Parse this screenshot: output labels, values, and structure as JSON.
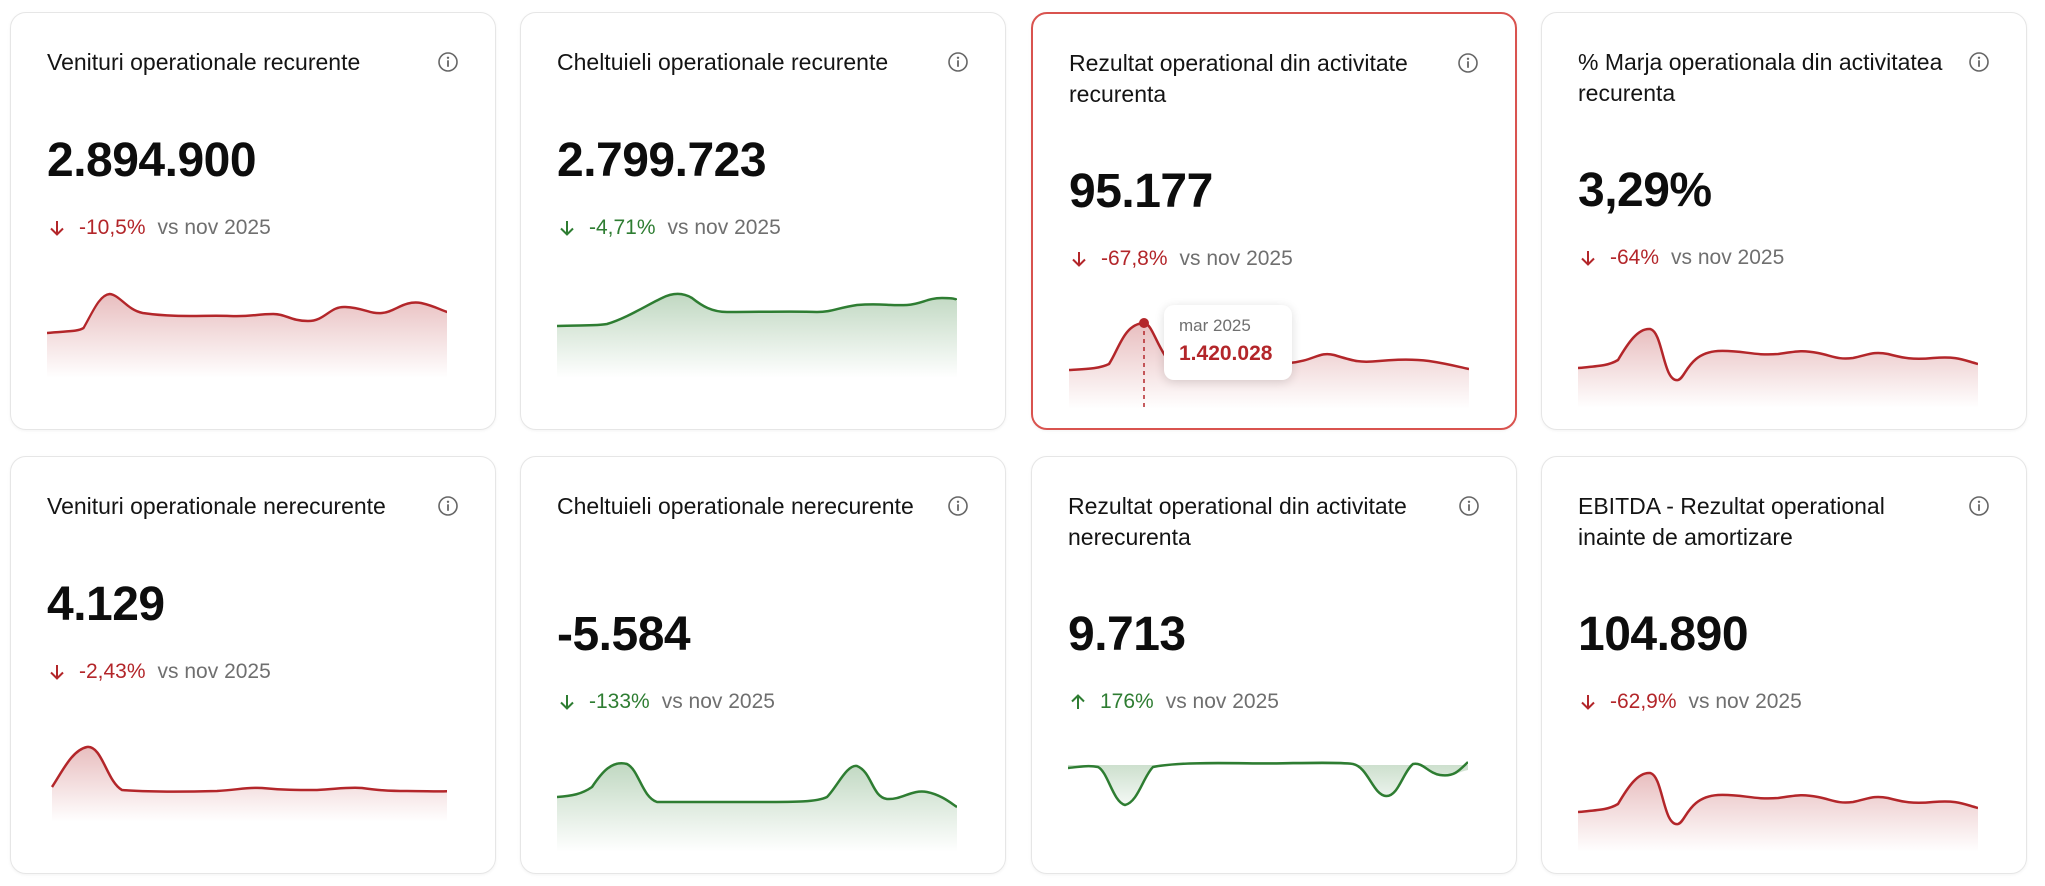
{
  "comparison_label": "vs nov 2025",
  "colors": {
    "negative": "#b3262a",
    "positive": "#2e7d32",
    "active_border": "#d9534f"
  },
  "cards": [
    {
      "title": "Venituri operationale recurente",
      "value": "2.894.900",
      "change": "-10,5%",
      "direction": "down",
      "tone": "negative",
      "icon": "info-icon"
    },
    {
      "title": "Cheltuieli operationale recurente",
      "value": "2.799.723",
      "change": "-4,71%",
      "direction": "down",
      "tone": "positive",
      "icon": "info-icon"
    },
    {
      "title": "Rezultat operational din activitate recurenta",
      "value": "95.177",
      "change": "-67,8%",
      "direction": "down",
      "tone": "negative",
      "icon": "info-icon",
      "active": true
    },
    {
      "title": "% Marja operationala din activitatea recurenta",
      "value": "3,29%",
      "change": "-64%",
      "direction": "down",
      "tone": "negative",
      "icon": "info-icon"
    },
    {
      "title": "Venituri operationale nerecurente",
      "value": "4.129",
      "change": "-2,43%",
      "direction": "down",
      "tone": "negative",
      "icon": "info-icon"
    },
    {
      "title": "Cheltuieli operationale nerecurente",
      "value": "-5.584",
      "change": "-133%",
      "direction": "down",
      "tone": "positive",
      "icon": "info-icon"
    },
    {
      "title": "Rezultat operational din activitate nerecurenta",
      "value": "9.713",
      "change": "176%",
      "direction": "up",
      "tone": "positive",
      "icon": "info-icon"
    },
    {
      "title": "EBITDA - Rezultat operational inainte de amortizare",
      "value": "104.890",
      "change": "-62,9%",
      "direction": "down",
      "tone": "negative",
      "icon": "info-icon"
    }
  ],
  "tooltip": {
    "date": "mar 2025",
    "value": "1.420.028"
  }
}
